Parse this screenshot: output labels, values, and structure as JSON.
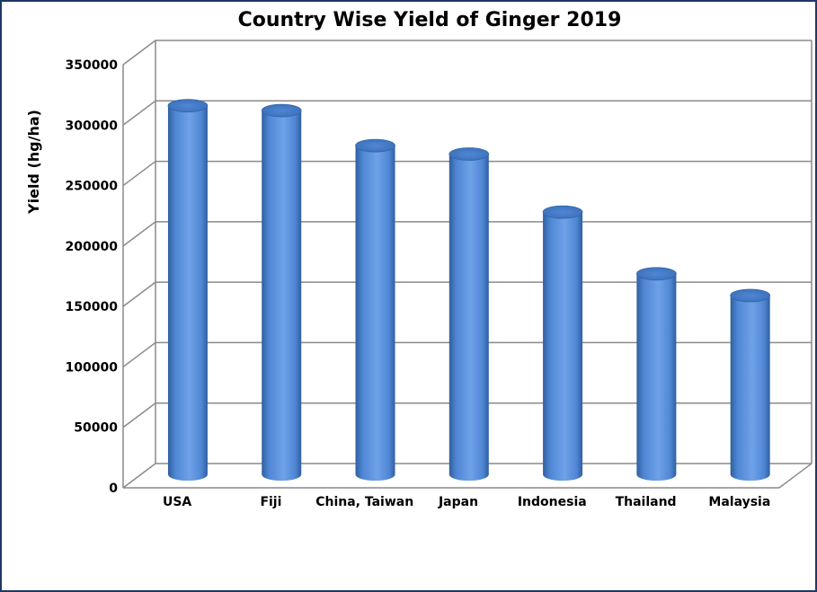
{
  "chart_data": {
    "type": "bar",
    "title": "Country Wise Yield of Ginger 2019",
    "xlabel": "",
    "ylabel": "Yield (hg/ha)",
    "categories": [
      "USA",
      "Fiji",
      "China, Taiwan",
      "Japan",
      "Indonesia",
      "Thailand",
      "Malaysia"
    ],
    "values": [
      305000,
      301000,
      272000,
      265000,
      217000,
      166000,
      148000
    ],
    "ylim": [
      0,
      350000
    ],
    "yticks": [
      "0",
      "50000",
      "100000",
      "150000",
      "200000",
      "250000",
      "300000",
      "350000"
    ],
    "grid": true,
    "legend": "none",
    "style": "3d-cylinder",
    "colors": {
      "bar": "#4f86d4",
      "bar_light": "#6ea2e8",
      "bar_dark": "#2f5f9f",
      "grid": "#8a8a8a",
      "frame": "#1f3864"
    }
  }
}
